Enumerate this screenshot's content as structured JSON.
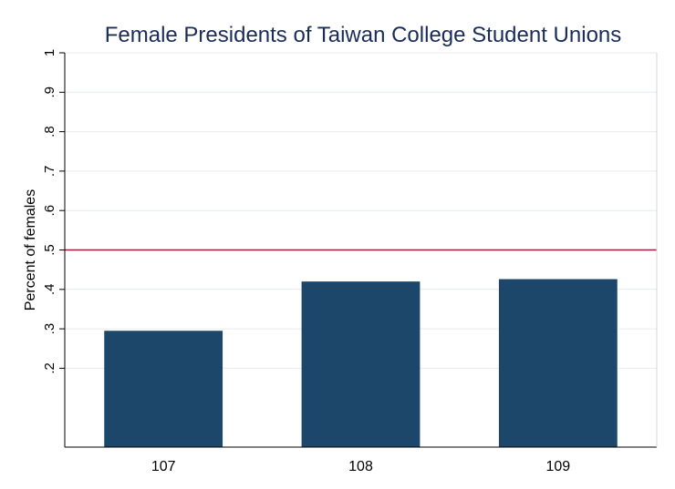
{
  "chart_data": {
    "type": "bar",
    "title": "Female Presidents of Taiwan College Student Unions",
    "xlabel": "",
    "ylabel": "Percent of females",
    "categories": [
      "107",
      "108",
      "109"
    ],
    "values": [
      0.295,
      0.42,
      0.426
    ],
    "ylim": [
      0,
      1
    ],
    "yticks": [
      ".2",
      ".3",
      ".4",
      ".5",
      ".6",
      ".7",
      ".8",
      ".9",
      "1"
    ],
    "reference_line": 0.5,
    "grid": true,
    "colors": {
      "bar": "#1c476b",
      "reference_line": "#a01c3c",
      "grid": "#e6eaee",
      "title": "#1a2d5a"
    }
  }
}
